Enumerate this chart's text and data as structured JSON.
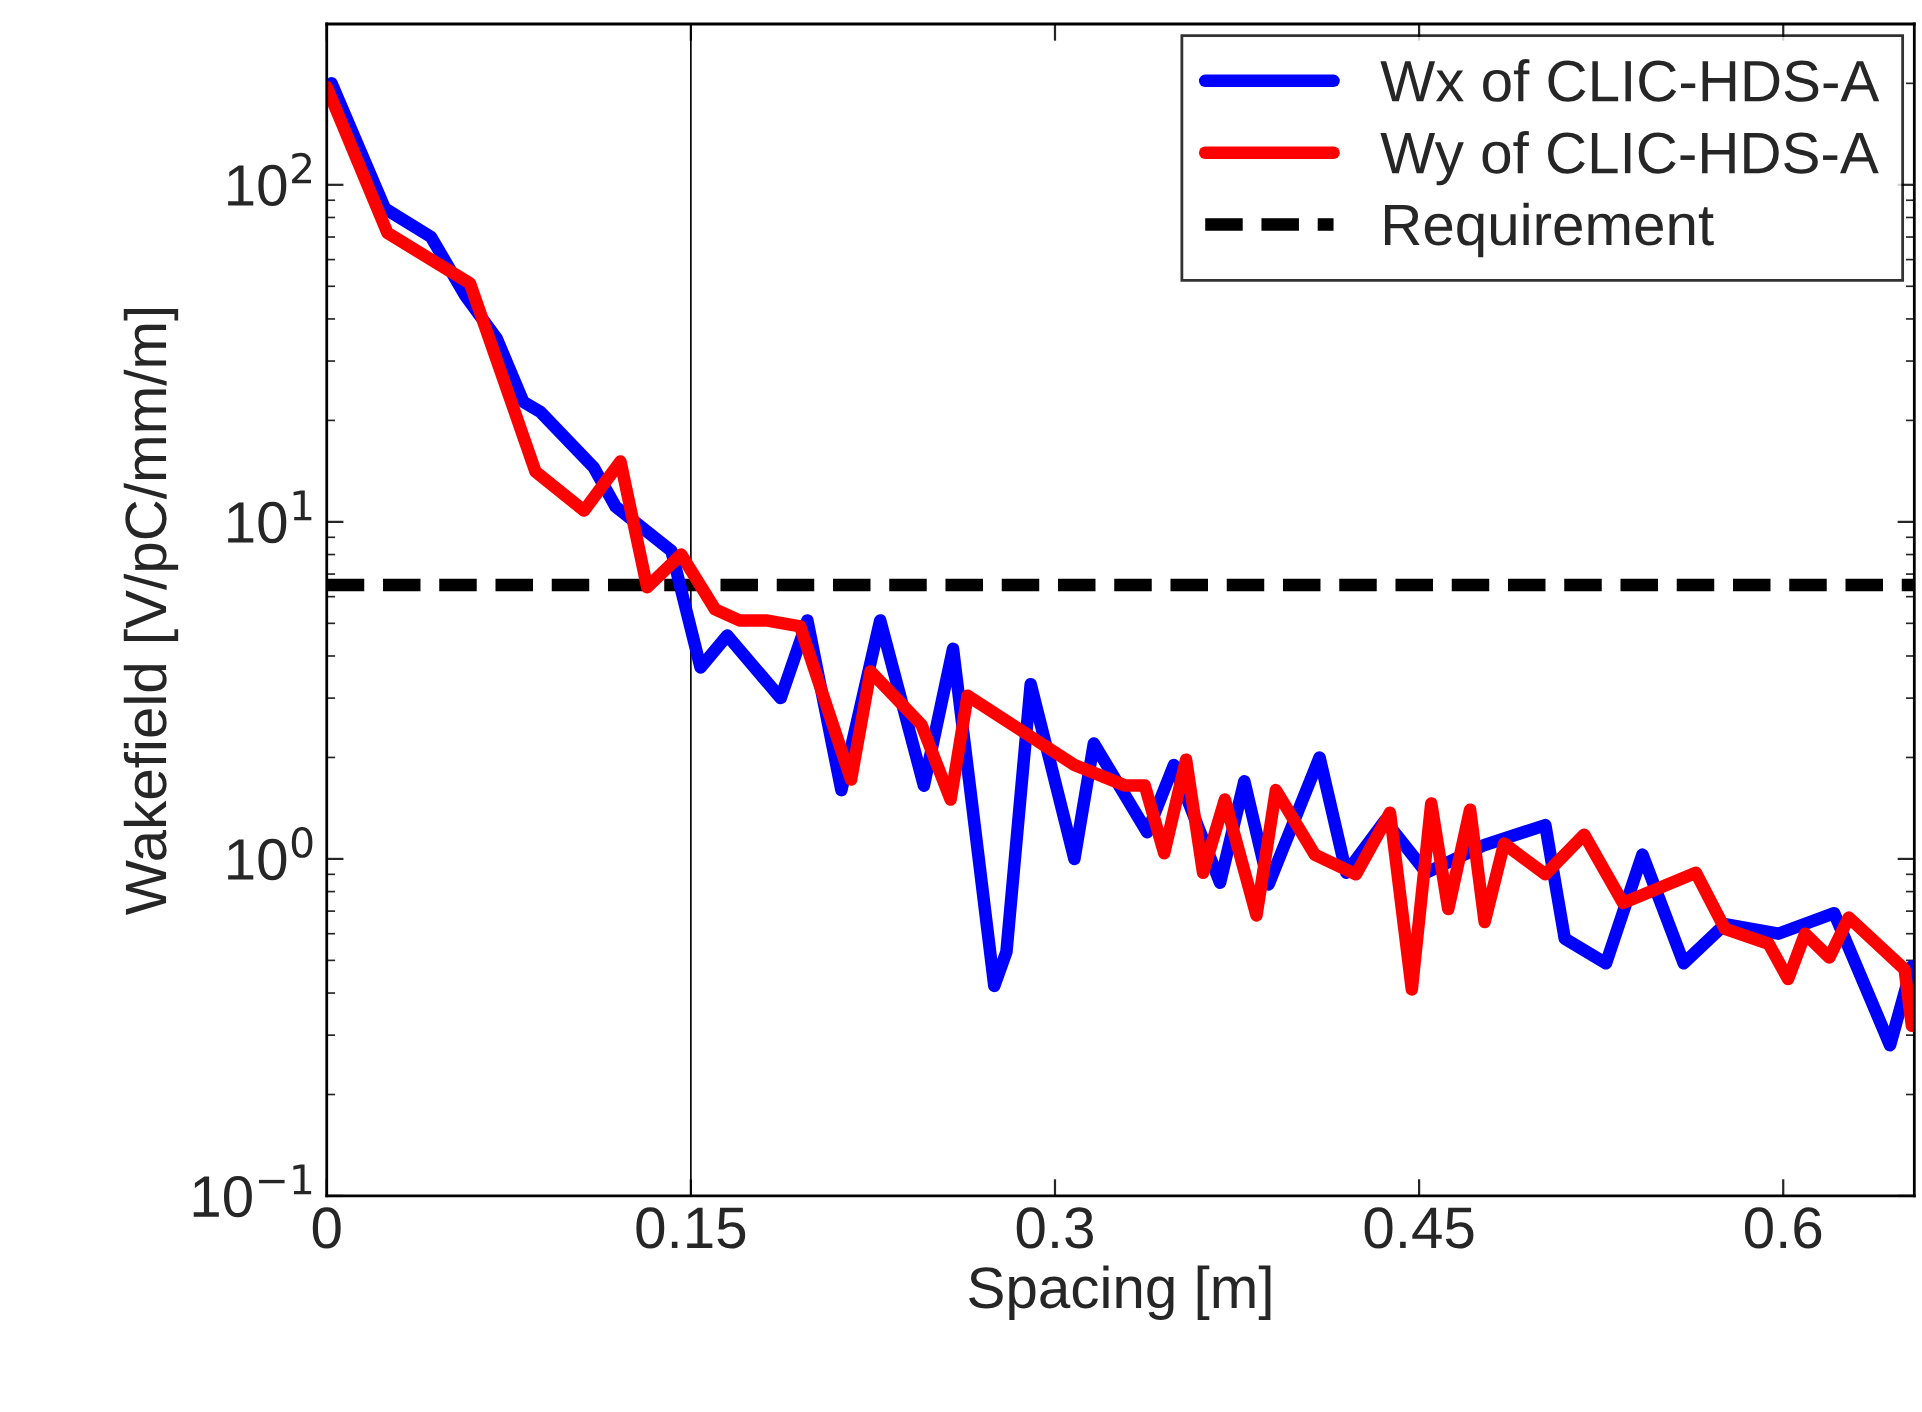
{
  "chart_data": {
    "type": "line",
    "xlabel": "Spacing [m]",
    "ylabel": "Wakefield [V/pC/mm/m]",
    "log": "y",
    "xlim": [
      0,
      0.654
    ],
    "xticks": [
      0,
      0.15,
      0.3,
      0.45,
      0.6
    ],
    "ylim": [
      0.1,
      300
    ],
    "yticks": [
      {
        "value": 0.1,
        "label": "10$^{−1}$"
      },
      {
        "value": 1,
        "label": "10$^{0}$"
      },
      {
        "value": 10,
        "label": "10$^{1}$"
      },
      {
        "value": 100,
        "label": "10$^{2}$"
      }
    ],
    "grid": false,
    "legend": "top right",
    "line_style": "solid",
    "marker": "none",
    "series": [
      {
        "name": "Wx of CLIC-HDS-A",
        "color": "#0000ff",
        "x": [
          0.002,
          0.024,
          0.043,
          0.057,
          0.07,
          0.081,
          0.088,
          0.11,
          0.119,
          0.142,
          0.154,
          0.165,
          0.187,
          0.198,
          0.212,
          0.228,
          0.246,
          0.258,
          0.275,
          0.28,
          0.29,
          0.308,
          0.316,
          0.338,
          0.349,
          0.368,
          0.378,
          0.388,
          0.409,
          0.42,
          0.436,
          0.453,
          0.477,
          0.502,
          0.51,
          0.527,
          0.542,
          0.559,
          0.576,
          0.598,
          0.621,
          0.644,
          0.653
        ],
        "values": [
          200,
          85,
          70,
          47,
          35,
          22.7,
          21.2,
          14.5,
          11.1,
          8.2,
          3.7,
          4.6,
          3.0,
          5.1,
          1.6,
          5.1,
          1.65,
          4.2,
          0.42,
          0.53,
          3.3,
          1.0,
          2.2,
          1.2,
          1.9,
          0.85,
          1.7,
          0.84,
          2.0,
          0.91,
          1.3,
          0.91,
          1.1,
          1.26,
          0.58,
          0.49,
          1.03,
          0.49,
          0.64,
          0.6,
          0.69,
          0.28,
          0.48
        ]
      },
      {
        "name": "Wy of CLIC-HDS-A",
        "color": "#ff0000",
        "x": [
          0.0,
          0.025,
          0.059,
          0.086,
          0.106,
          0.121,
          0.132,
          0.146,
          0.16,
          0.17,
          0.181,
          0.195,
          0.216,
          0.224,
          0.245,
          0.257,
          0.264,
          0.308,
          0.329,
          0.337,
          0.345,
          0.354,
          0.361,
          0.37,
          0.383,
          0.391,
          0.407,
          0.424,
          0.438,
          0.447,
          0.455,
          0.462,
          0.471,
          0.477,
          0.485,
          0.502,
          0.518,
          0.534,
          0.564,
          0.576,
          0.594,
          0.602,
          0.609,
          0.619,
          0.627,
          0.65,
          0.653
        ],
        "values": [
          195,
          72,
          51,
          14.1,
          10.8,
          15.1,
          6.4,
          8.0,
          5.5,
          5.1,
          5.1,
          4.9,
          1.72,
          3.6,
          2.5,
          1.5,
          3.05,
          1.9,
          1.65,
          1.65,
          1.04,
          1.97,
          0.91,
          1.5,
          0.68,
          1.6,
          1.03,
          0.9,
          1.37,
          0.41,
          1.46,
          0.71,
          1.4,
          0.65,
          1.11,
          0.9,
          1.18,
          0.74,
          0.91,
          0.62,
          0.56,
          0.44,
          0.6,
          0.51,
          0.67,
          0.47,
          0.32
        ]
      }
    ],
    "ref_lines": [
      {
        "axis": "y",
        "value": 6.5,
        "label": "Requirement",
        "color": "#000000",
        "line_style": "dashed"
      },
      {
        "axis": "x",
        "value": 0.15,
        "color": "#000000",
        "line_style": "solid"
      }
    ]
  }
}
